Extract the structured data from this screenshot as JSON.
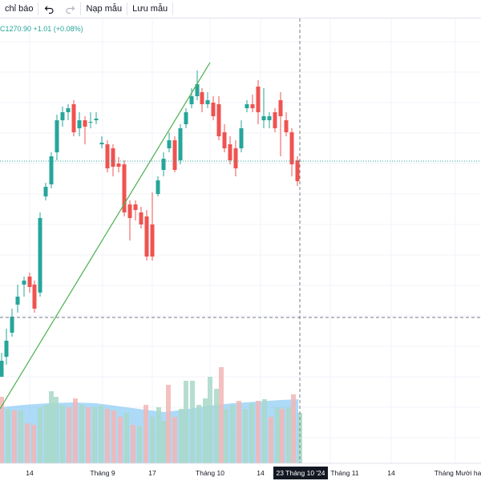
{
  "toolbar": {
    "indicators_label": "chỉ báo",
    "templates_label": "Nạp mẫu",
    "save_label": "Lưu mẫu"
  },
  "price_readout": "C1270.90 +1.01 (+0.08%)",
  "colors": {
    "up": "#26a69a",
    "down": "#ef5350",
    "volume_up": "#a8d8c8",
    "volume_down": "#f2b6b5",
    "volume_ma_fill": "#90cdf4",
    "trendline": "#4caf50",
    "grid": "#f0f3fa",
    "crosshair": "#787b86"
  },
  "x_axis": {
    "ticks": [
      "14",
      "Tháng 9",
      "17",
      "Tháng 10",
      "14",
      "Tháng 11",
      "14",
      "Tháng Mười hai"
    ],
    "highlighted_label": "23 Tháng 10 '24"
  }
}
